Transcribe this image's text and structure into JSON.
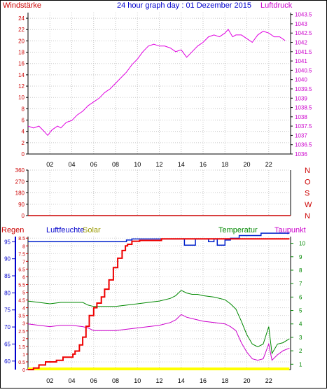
{
  "title": "24 hour graph day : 01 Dezember 2015",
  "x_ticks": [
    "02",
    "04",
    "06",
    "08",
    "10",
    "12",
    "14",
    "16",
    "18",
    "20",
    "22"
  ],
  "panels": {
    "top": {
      "left_label": "Windstärke",
      "right_label": "Luftdruck",
      "left_ticks": [
        "0",
        "2",
        "4",
        "6",
        "8",
        "10",
        "12",
        "14",
        "16",
        "18",
        "20",
        "22",
        "24"
      ],
      "right_ticks": [
        "1036",
        "1036.5",
        "1037",
        "1037.5",
        "1038",
        "1038.5",
        "1039",
        "1039.5",
        "1040",
        "1040.5",
        "1041",
        "1041.5",
        "1042",
        "1042.5",
        "1043",
        "1043.5"
      ]
    },
    "middle": {
      "left_ticks": [
        "0",
        "90",
        "180",
        "270",
        "360"
      ],
      "right_ticks": [
        "N",
        "W",
        "S",
        "O",
        "N"
      ]
    },
    "bottom": {
      "label_regen": "Regen",
      "label_luftfeuchte": "Luftfeuchte",
      "label_solar": "Solar",
      "label_temperatur": "Temperatur",
      "label_taupunkt": "Taupunkt",
      "regen_ticks": [
        "0",
        "0.5",
        "1",
        "1.5",
        "2",
        "2.5",
        "3",
        "3.5",
        "4",
        "4.5",
        "5",
        "5.5",
        "6",
        "6.5",
        "7",
        "7.5",
        "8",
        "8.5"
      ],
      "feuchte_ticks": [
        "60",
        "65",
        "70",
        "75",
        "80",
        "85",
        "90",
        "95"
      ],
      "temp_ticks": [
        "1",
        "2",
        "3",
        "4",
        "5",
        "6",
        "7",
        "8",
        "9",
        "10"
      ]
    }
  },
  "colors": {
    "luftdruck": "#e000e0",
    "regen": "#ee0000",
    "luftfeuchte": "#0022cc",
    "solar": "#ffff00",
    "temperatur": "#008800",
    "taupunkt": "#cc00cc",
    "wind_dir": "#cc0000"
  },
  "chart_data": [
    {
      "type": "line",
      "x_unit": "hour",
      "xlim": [
        0,
        24
      ],
      "left_axis": {
        "label": "Windstärke",
        "ylim": [
          0,
          25
        ]
      },
      "right_axis": {
        "label": "Luftdruck",
        "ylim": [
          1036,
          1043.6
        ]
      },
      "series": [
        {
          "name": "Luftdruck",
          "axis": "right",
          "x": [
            0,
            0.5,
            1,
            1.5,
            1.8,
            2.2,
            2.7,
            3,
            3.5,
            4,
            4.5,
            5,
            5.5,
            6,
            6.5,
            7,
            7.5,
            8,
            8.5,
            9,
            9.5,
            10,
            10.5,
            11,
            11.5,
            12,
            12.5,
            13,
            13.5,
            14,
            14.5,
            15,
            15.5,
            16,
            16.5,
            17,
            17.5,
            18,
            18.3,
            18.7,
            19,
            19.5,
            20,
            20.5,
            21,
            21.5,
            22,
            22.5,
            23,
            23.5
          ],
          "values": [
            1037.5,
            1037.4,
            1037.5,
            1037.2,
            1037.0,
            1037.3,
            1037.5,
            1037.4,
            1037.7,
            1037.8,
            1038.1,
            1038.3,
            1038.6,
            1038.8,
            1039.0,
            1039.3,
            1039.5,
            1039.8,
            1040.1,
            1040.4,
            1040.8,
            1041.1,
            1041.5,
            1041.8,
            1041.9,
            1041.8,
            1041.8,
            1041.7,
            1041.5,
            1041.6,
            1041.2,
            1041.5,
            1041.8,
            1042.0,
            1042.3,
            1042.4,
            1042.3,
            1042.5,
            1042.7,
            1042.3,
            1042.4,
            1042.4,
            1042.2,
            1042.0,
            1042.4,
            1042.6,
            1042.5,
            1042.3,
            1042.3,
            1042.1
          ]
        }
      ]
    },
    {
      "type": "line",
      "x_unit": "hour",
      "xlim": [
        0,
        24
      ],
      "left_axis": {
        "ylim": [
          0,
          360
        ]
      },
      "series": [
        {
          "name": "",
          "x": [
            0,
            24
          ],
          "values": [
            0,
            0
          ]
        }
      ]
    },
    {
      "type": "line",
      "x_unit": "hour",
      "xlim": [
        0,
        24
      ],
      "axes": {
        "regen": {
          "label": "Regen",
          "ylim": [
            0,
            8.6
          ]
        },
        "luftfeuchte": {
          "label": "Luftfeuchte",
          "ylim": [
            57.5,
            96.5
          ]
        },
        "temperatur": {
          "label": "Temperatur",
          "ylim": [
            0.6,
            10.5
          ]
        }
      },
      "series": [
        {
          "name": "Regen",
          "axis": "regen",
          "x": [
            0,
            0.5,
            1,
            1.6,
            2.6,
            3.2,
            4.1,
            4.3,
            4.7,
            5.0,
            5.3,
            5.6,
            6.0,
            6.3,
            6.7,
            7.0,
            7.4,
            7.8,
            8.2,
            8.6,
            8.9,
            9.1,
            9.5,
            10.2,
            12.2,
            23.9
          ],
          "values": [
            0,
            0.1,
            0.3,
            0.5,
            0.6,
            0.8,
            1.0,
            1.2,
            1.6,
            2.1,
            2.8,
            3.5,
            4.0,
            4.3,
            4.7,
            5.2,
            5.8,
            6.6,
            7.2,
            7.7,
            8.0,
            8.1,
            8.3,
            8.35,
            8.45,
            8.45
          ]
        },
        {
          "name": "Luftfeuchte",
          "axis": "luftfeuchte",
          "x": [
            0,
            1,
            2,
            3,
            4,
            5,
            6,
            7,
            8,
            9,
            9.5,
            10,
            11,
            12,
            13,
            14,
            14.3,
            15,
            15.3,
            16,
            16.5,
            17,
            17.3,
            17.6,
            18,
            18.5,
            19,
            19.3,
            20,
            21,
            21.3,
            22,
            23,
            23.9
          ],
          "values": [
            95,
            95,
            95,
            95,
            95,
            95,
            95,
            95,
            95,
            95.5,
            95.8,
            95.8,
            95.8,
            95.8,
            95.8,
            95.8,
            94,
            94,
            95.8,
            95.8,
            95,
            95.8,
            94,
            94,
            95.5,
            96,
            96,
            96.8,
            96.8,
            96.8,
            97.5,
            97.5,
            97.5,
            97.5
          ]
        },
        {
          "name": "Solar",
          "axis": "regen",
          "x": [
            0,
            23.9
          ],
          "values": [
            0,
            0
          ]
        },
        {
          "name": "Temperatur",
          "axis": "temperatur",
          "x": [
            0,
            1,
            2,
            3,
            4,
            5,
            5.5,
            6,
            7,
            8,
            9,
            10,
            11,
            12,
            13,
            13.5,
            14,
            14.5,
            15,
            15.5,
            16,
            17,
            18,
            18.5,
            19,
            19.5,
            20,
            20.5,
            21,
            21.5,
            22,
            22.3,
            22.8,
            23.3,
            23.9
          ],
          "values": [
            5.7,
            5.6,
            5.5,
            5.6,
            5.6,
            5.6,
            5.4,
            5.3,
            5.3,
            5.3,
            5.4,
            5.5,
            5.6,
            5.7,
            5.9,
            6.1,
            6.5,
            6.3,
            6.2,
            6.2,
            6.1,
            6.0,
            5.8,
            5.5,
            5.1,
            4.2,
            3.2,
            2.5,
            2.3,
            2.5,
            3.8,
            1.8,
            2.5,
            2.6,
            2.9
          ]
        },
        {
          "name": "Taupunkt",
          "axis": "temperatur",
          "x": [
            0,
            1,
            2,
            3,
            4,
            5,
            5.5,
            6,
            7,
            8,
            9,
            10,
            11,
            12,
            13,
            13.5,
            14,
            14.5,
            15,
            15.5,
            16,
            17,
            18,
            18.5,
            19,
            19.5,
            20,
            20.5,
            21,
            21.5,
            22,
            22.3,
            22.8,
            23.3,
            23.9
          ],
          "values": [
            4.0,
            3.9,
            3.8,
            3.9,
            3.9,
            3.8,
            3.7,
            3.5,
            3.5,
            3.5,
            3.6,
            3.7,
            3.8,
            3.9,
            4.1,
            4.3,
            4.7,
            4.5,
            4.4,
            4.3,
            4.2,
            4.1,
            4.0,
            3.8,
            3.5,
            2.6,
            1.9,
            1.4,
            1.3,
            1.4,
            2.5,
            1.3,
            1.7,
            2.0,
            2.2
          ]
        }
      ]
    }
  ]
}
